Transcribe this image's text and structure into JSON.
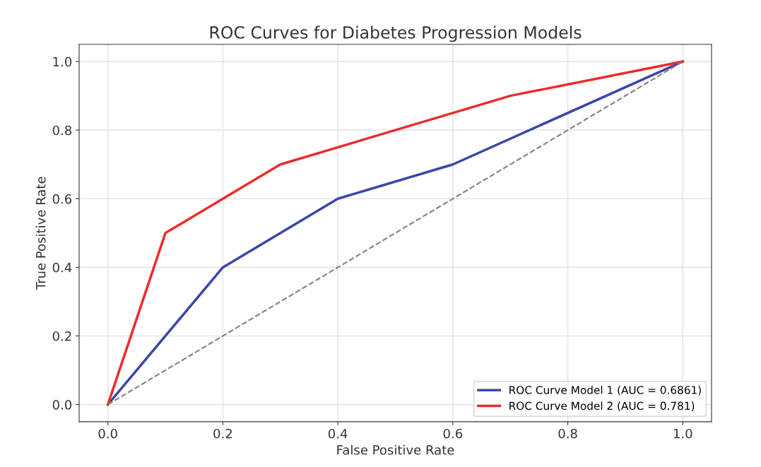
{
  "chart_data": {
    "type": "line",
    "title": "ROC Curves for Diabetes Progression Models",
    "xlabel": "False Positive Rate",
    "ylabel": "True Positive Rate",
    "xlim": [
      -0.05,
      1.05
    ],
    "ylim": [
      -0.05,
      1.05
    ],
    "xticks": [
      {
        "value": 0,
        "label": "0.0"
      },
      0.2,
      0.4,
      0.6,
      0.8,
      {
        "value": 1,
        "label": "1.0"
      }
    ],
    "yticks": [
      {
        "value": 0,
        "label": "0.0"
      },
      0.2,
      0.4,
      0.6,
      0.8,
      {
        "value": 1,
        "label": "1.0"
      }
    ],
    "grid": true,
    "legend": "bottom right",
    "marker": "none",
    "series": [
      {
        "name": "ROC Curve Model 1 (AUC = 0.6861)",
        "color": "#3a46a8",
        "x": [
          0,
          0.2,
          0.4,
          0.6,
          1.0
        ],
        "values": [
          0,
          0.4,
          0.6,
          0.7,
          1.0
        ],
        "line_style": "solid"
      },
      {
        "name": "ROC Curve Model 2 (AUC = 0.781)",
        "color": "#ee2a2a",
        "x": [
          0,
          0.1,
          0.3,
          0.7,
          1.0
        ],
        "values": [
          0,
          0.5,
          0.7,
          0.9,
          1.0
        ],
        "line_style": "solid"
      },
      {
        "color": "#8a7d7d",
        "x": [
          0,
          1.0
        ],
        "values": [
          0,
          1.0
        ],
        "line_style": "dashed"
      }
    ]
  }
}
